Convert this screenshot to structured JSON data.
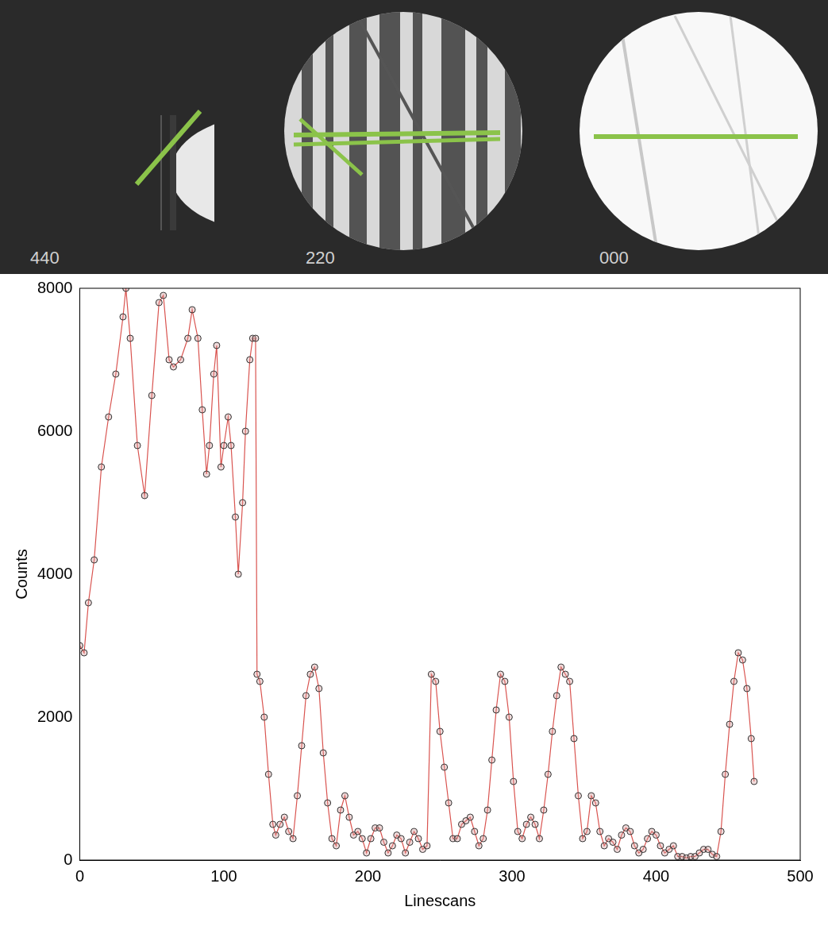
{
  "image": {
    "labels": [
      "440",
      "220",
      "000"
    ]
  },
  "chart_data": {
    "type": "line",
    "x": [
      0,
      3,
      6,
      10,
      15,
      20,
      25,
      30,
      32,
      35,
      40,
      45,
      50,
      55,
      58,
      62,
      65,
      70,
      75,
      78,
      82,
      85,
      88,
      90,
      93,
      95,
      98,
      100,
      103,
      105,
      108,
      110,
      113,
      115,
      118,
      120,
      122,
      123,
      125,
      128,
      131,
      134,
      136,
      139,
      142,
      145,
      148,
      151,
      154,
      157,
      160,
      163,
      166,
      169,
      172,
      175,
      178,
      181,
      184,
      187,
      190,
      193,
      196,
      199,
      202,
      205,
      208,
      211,
      214,
      217,
      220,
      223,
      226,
      229,
      232,
      235,
      238,
      241,
      244,
      247,
      250,
      253,
      256,
      259,
      262,
      265,
      268,
      271,
      274,
      277,
      280,
      283,
      286,
      289,
      292,
      295,
      298,
      301,
      304,
      307,
      310,
      313,
      316,
      319,
      322,
      325,
      328,
      331,
      334,
      337,
      340,
      343,
      346,
      349,
      352,
      355,
      358,
      361,
      364,
      367,
      370,
      373,
      376,
      379,
      382,
      385,
      388,
      391,
      394,
      397,
      400,
      403,
      406,
      409,
      412,
      415,
      418,
      421,
      424,
      427,
      430,
      433,
      436,
      439,
      442,
      445,
      448,
      451,
      454,
      457,
      460,
      463,
      466,
      468
    ],
    "values": [
      3000,
      2900,
      3600,
      4200,
      5500,
      6200,
      6800,
      7600,
      8000,
      7300,
      5800,
      5100,
      6500,
      7800,
      7900,
      7000,
      6900,
      7000,
      7300,
      7700,
      7300,
      6300,
      5400,
      5800,
      6800,
      7200,
      5500,
      5800,
      6200,
      5800,
      4800,
      4000,
      5000,
      6000,
      7000,
      7300,
      7300,
      2600,
      2500,
      2000,
      1200,
      500,
      350,
      500,
      600,
      400,
      300,
      900,
      1600,
      2300,
      2600,
      2700,
      2400,
      1500,
      800,
      300,
      200,
      700,
      900,
      600,
      350,
      400,
      300,
      100,
      300,
      450,
      450,
      250,
      100,
      200,
      350,
      300,
      100,
      250,
      400,
      300,
      150,
      200,
      2600,
      2500,
      1800,
      1300,
      800,
      300,
      300,
      500,
      550,
      600,
      400,
      200,
      300,
      700,
      1400,
      2100,
      2600,
      2500,
      2000,
      1100,
      400,
      300,
      500,
      600,
      500,
      300,
      700,
      1200,
      1800,
      2300,
      2700,
      2600,
      2500,
      1700,
      900,
      300,
      400,
      900,
      800,
      400,
      200,
      300,
      250,
      150,
      350,
      450,
      400,
      200,
      100,
      150,
      300,
      400,
      350,
      200,
      100,
      150,
      200,
      50,
      50,
      30,
      50,
      50,
      100,
      150,
      150,
      80,
      50,
      400,
      1200,
      1900,
      2500,
      2900,
      2800,
      2400,
      1700,
      1100
    ],
    "x_label": "Linescans",
    "y_label": "Counts",
    "xlim": [
      0,
      500
    ],
    "xticks": [
      0,
      100,
      200,
      300,
      400,
      500
    ],
    "ylim": [
      0,
      8000
    ],
    "yticks": [
      0,
      2000,
      4000,
      6000,
      8000
    ],
    "color": "#d9534f",
    "marker": "circle",
    "grid": false
  }
}
